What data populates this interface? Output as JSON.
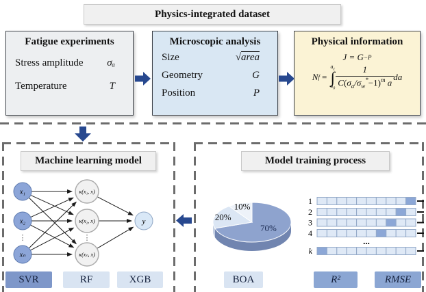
{
  "colors": {
    "arrow": "#27488f",
    "fatigue_bg": "#edeff1",
    "microscopic_bg": "#d9e7f3",
    "physical_bg": "#fbf3d5",
    "chip_light": "#d9e4f2",
    "chip_dark": "#8ba6d3",
    "chip_svr": "#7e97c9",
    "dash_line": "#6c6c6c"
  },
  "header": {
    "title": "Physics-integrated dataset"
  },
  "fatigue": {
    "title": "Fatigue experiments",
    "rows": [
      {
        "label": "Stress amplitude",
        "value": "σₐ"
      },
      {
        "label": "Temperature",
        "value": "T"
      }
    ]
  },
  "microscopic": {
    "title": "Microscopic analysis",
    "rows": [
      {
        "label": "Size",
        "radical": "√",
        "value": "area"
      },
      {
        "label": "Geometry",
        "value": "G"
      },
      {
        "label": "Position",
        "value": "P"
      }
    ]
  },
  "physical": {
    "title": "Physical information",
    "eq1": {
      "lhs": "J",
      "eq": "=",
      "base": "G",
      "exp": "−P"
    },
    "eq2": {
      "lhs": "N",
      "lhs_sub": "f",
      "eq": "=",
      "integral": "∫",
      "upper": "a",
      "upper_sub": "c",
      "lower": "a",
      "lower_sub": "0",
      "numerator": "1",
      "den_coef": "C",
      "paren_open": "(",
      "sigma1": "σ",
      "sigma1_sub": "a",
      "slash": "/",
      "sigma2": "σ",
      "sigma2_sub": "w",
      "sigma2_sup": "*",
      "minus_one": "−1",
      "paren_close": ")",
      "exp": "m",
      "den_var": "a",
      "differential": "da"
    }
  },
  "ml": {
    "title": "Machine learning model",
    "inputs": [
      "x₁",
      "x₂",
      "xₙ"
    ],
    "hidden": [
      "κ(x₁, x)",
      "κ(x₂, x)",
      "κ(xₙ, x)"
    ],
    "output": "y",
    "dots": "⋮",
    "models": [
      "SVR",
      "RF",
      "XGB"
    ]
  },
  "training": {
    "title": "Model training process",
    "pie": {
      "slices": [
        {
          "label": "70%",
          "value": 70,
          "color": "#8ea3ce",
          "side": "#7185b0",
          "label_color": "#1c2b52"
        },
        {
          "label": "20%",
          "value": 20,
          "color": "#dbe6f4",
          "side": "#c3cfe3",
          "label_color": "#111111"
        },
        {
          "label": "10%",
          "value": 10,
          "color": "#edf2f9",
          "side": "#d5dde9",
          "label_color": "#111111"
        }
      ]
    },
    "kfold": {
      "cells": 10,
      "ellipsis": "...",
      "rows": [
        {
          "label": "1",
          "highlight": 10
        },
        {
          "label": "2",
          "highlight": 9
        },
        {
          "label": "3",
          "highlight": 8
        },
        {
          "label": "4",
          "highlight": 7
        },
        {
          "label": "k",
          "highlight": 1,
          "italic": true
        }
      ]
    },
    "chips": [
      "BOA",
      "R²",
      "RMSE"
    ]
  }
}
